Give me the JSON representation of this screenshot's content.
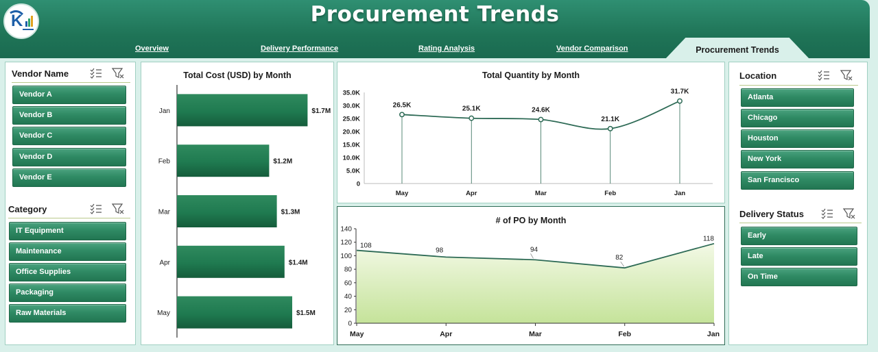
{
  "header": {
    "title": "Procurement Trends",
    "tabs": [
      {
        "label": "Overview",
        "active": false
      },
      {
        "label": "Delivery Performance",
        "active": false
      },
      {
        "label": "Rating Analysis",
        "active": false
      },
      {
        "label": "Vendor Comparison",
        "active": false
      },
      {
        "label": "Procurement Trends",
        "active": true
      }
    ]
  },
  "colors": {
    "header": "#1f7457",
    "slicer_button": "#2f8a64",
    "bar": "#1f7a50",
    "line": "#2d6a55",
    "area_fill": "#cfe8a8",
    "background": "#d9f0ea"
  },
  "slicers": {
    "vendor": {
      "title": "Vendor Name",
      "icons": [
        "multi-select-icon",
        "clear-filter-icon"
      ],
      "items": [
        "Vendor A",
        "Vendor B",
        "Vendor C",
        "Vendor D",
        "Vendor E"
      ]
    },
    "category": {
      "title": "Category",
      "icons": [
        "multi-select-icon",
        "clear-filter-icon"
      ],
      "items": [
        "IT Equipment",
        "Maintenance",
        "Office Supplies",
        "Packaging",
        "Raw Materials"
      ]
    },
    "location": {
      "title": "Location",
      "icons": [
        "multi-select-icon",
        "clear-filter-icon"
      ],
      "items": [
        "Atlanta",
        "Chicago",
        "Houston",
        "New York",
        "San Francisco"
      ]
    },
    "delivery_status": {
      "title": "Delivery Status",
      "icons": [
        "multi-select-icon",
        "clear-filter-icon"
      ],
      "items": [
        "Early",
        "Late",
        "On Time"
      ]
    }
  },
  "chart_data": [
    {
      "type": "bar",
      "orientation": "horizontal",
      "title": "Total Cost (USD) by Month",
      "categories": [
        "Jan",
        "Feb",
        "Mar",
        "Apr",
        "May"
      ],
      "values": [
        1.7,
        1.2,
        1.3,
        1.4,
        1.5
      ],
      "labels": [
        "$1.7M",
        "$1.2M",
        "$1.3M",
        "$1.4M",
        "$1.5M"
      ],
      "xlim": [
        0,
        2
      ],
      "grid": false,
      "legend": "none"
    },
    {
      "type": "line",
      "title": "Total Quantity by Month",
      "categories": [
        "May",
        "Apr",
        "Mar",
        "Feb",
        "Jan"
      ],
      "values": [
        26.5,
        25.1,
        24.6,
        21.1,
        31.7
      ],
      "labels": [
        "26.5K",
        "25.1K",
        "24.6K",
        "21.1K",
        "31.7K"
      ],
      "ylim": [
        0,
        35
      ],
      "yticks": [
        "0",
        "5.0K",
        "10.0K",
        "15.0K",
        "20.0K",
        "25.0K",
        "30.0K",
        "35.0K"
      ],
      "grid": false,
      "legend": "none"
    },
    {
      "type": "area",
      "title": "# of PO by Month",
      "categories": [
        "May",
        "Apr",
        "Mar",
        "Feb",
        "Jan"
      ],
      "values": [
        108,
        98,
        94,
        82,
        118
      ],
      "labels": [
        "108",
        "98",
        "94",
        "82",
        "118"
      ],
      "ylim": [
        0,
        140
      ],
      "yticks": [
        "0",
        "20",
        "40",
        "60",
        "80",
        "100",
        "120",
        "140"
      ],
      "grid": false,
      "legend": "none"
    }
  ]
}
